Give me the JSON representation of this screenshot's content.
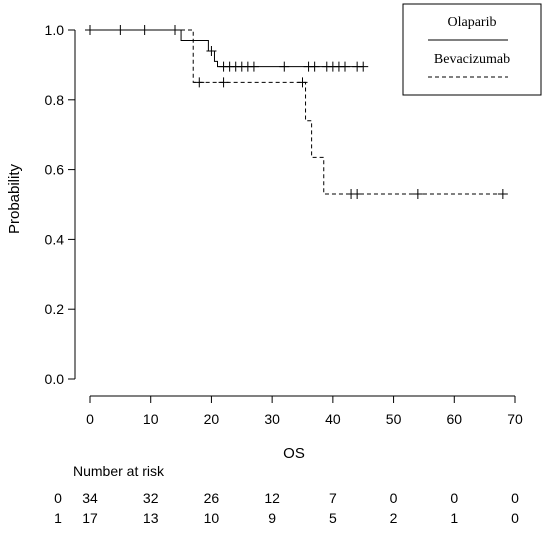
{
  "chart_data": {
    "type": "line",
    "title": "",
    "xlabel": "OS",
    "ylabel": "Probability",
    "xlim": [
      0,
      70
    ],
    "ylim": [
      0,
      1
    ],
    "x_ticks": [
      0,
      10,
      20,
      30,
      40,
      50,
      60,
      70
    ],
    "y_ticks": [
      0.0,
      0.2,
      0.4,
      0.6,
      0.8,
      1.0
    ],
    "x_tick_labels": [
      "0",
      "10",
      "20",
      "30",
      "40",
      "50",
      "60",
      "70"
    ],
    "y_tick_labels": [
      "0.0",
      "0.2",
      "0.4",
      "0.6",
      "0.8",
      "1.0"
    ],
    "grid": false,
    "legend_position": "top-right",
    "series": [
      {
        "name": "Olaparib",
        "line_style": "solid",
        "steps": [
          [
            0,
            1.0
          ],
          [
            15,
            0.97
          ],
          [
            19.5,
            0.94
          ],
          [
            20.5,
            0.91
          ],
          [
            21,
            0.895
          ],
          [
            45,
            0.895
          ]
        ],
        "censored": [
          [
            0,
            1.0
          ],
          [
            5,
            1.0
          ],
          [
            9,
            1.0
          ],
          [
            14,
            1.0
          ],
          [
            20,
            0.94
          ],
          [
            22,
            0.895
          ],
          [
            23,
            0.895
          ],
          [
            24,
            0.895
          ],
          [
            25,
            0.895
          ],
          [
            26,
            0.895
          ],
          [
            27,
            0.895
          ],
          [
            32,
            0.895
          ],
          [
            36,
            0.895
          ],
          [
            37,
            0.895
          ],
          [
            39,
            0.895
          ],
          [
            40,
            0.895
          ],
          [
            41,
            0.895
          ],
          [
            42,
            0.895
          ],
          [
            44,
            0.895
          ],
          [
            45,
            0.895
          ]
        ]
      },
      {
        "name": "Bevacizumab",
        "line_style": "dashed",
        "steps": [
          [
            0,
            1.0
          ],
          [
            17,
            0.85
          ],
          [
            35.5,
            0.74
          ],
          [
            36.5,
            0.635
          ],
          [
            38.5,
            0.53
          ],
          [
            68,
            0.53
          ]
        ],
        "censored": [
          [
            18,
            0.85
          ],
          [
            22,
            0.85
          ],
          [
            35,
            0.85
          ],
          [
            43,
            0.53
          ],
          [
            44,
            0.53
          ],
          [
            54,
            0.53
          ],
          [
            68,
            0.53
          ]
        ]
      }
    ]
  },
  "risk_table": {
    "title": "Number at risk",
    "rows": [
      {
        "label": "0",
        "values": [
          "34",
          "32",
          "26",
          "12",
          "7",
          "0",
          "0",
          "0"
        ]
      },
      {
        "label": "1",
        "values": [
          "17",
          "13",
          "10",
          "9",
          "5",
          "2",
          "1",
          "0"
        ]
      }
    ]
  }
}
